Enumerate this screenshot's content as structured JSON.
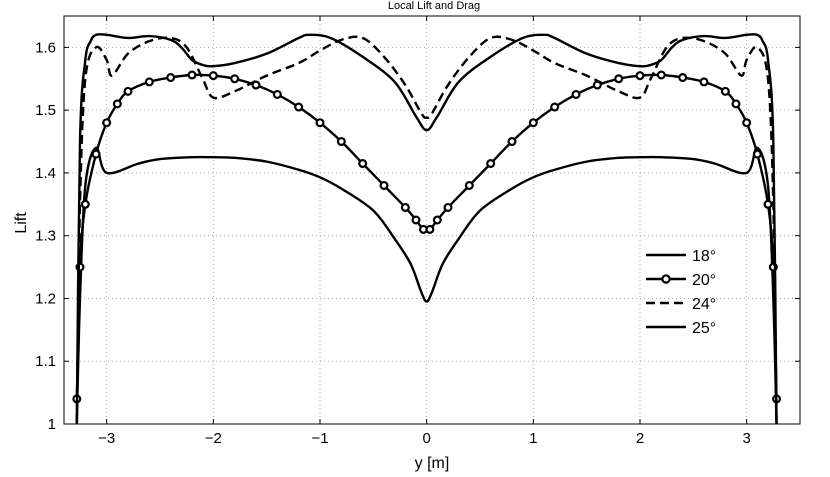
{
  "chart_data": {
    "type": "line",
    "title": "Local Lift and Drag",
    "xlabel": "y [m]",
    "ylabel": "Lift",
    "xlim": [
      -3.4,
      3.5
    ],
    "ylim": [
      1.0,
      1.65
    ],
    "xticks": [
      -3,
      -2,
      -1,
      0,
      1,
      2,
      3
    ],
    "xtick_labels": [
      "−3",
      "−2",
      "−1",
      "0",
      "1",
      "2",
      "3"
    ],
    "yticks": [
      1.0,
      1.1,
      1.2,
      1.3,
      1.4,
      1.5,
      1.6
    ],
    "ytick_labels": [
      "1",
      "1.1",
      "1.2",
      "1.3",
      "1.4",
      "1.5",
      "1.6"
    ],
    "grid": true,
    "legend_position": "right",
    "series": [
      {
        "name": "18°",
        "style": "solid",
        "x": [
          -3.28,
          -3.25,
          -3.2,
          -3.1,
          -3.0,
          -2.7,
          -2.5,
          -2.2,
          -2.0,
          -1.8,
          -1.5,
          -1.2,
          -1.0,
          -0.8,
          -0.5,
          -0.3,
          -0.15,
          -0.05,
          0.0,
          0.05,
          0.15,
          0.3,
          0.5,
          0.8,
          1.0,
          1.2,
          1.5,
          1.8,
          2.0,
          2.2,
          2.5,
          2.7,
          3.0,
          3.1,
          3.2,
          3.25,
          3.28
        ],
        "y": [
          1.0,
          1.2,
          1.38,
          1.44,
          1.4,
          1.415,
          1.422,
          1.425,
          1.425,
          1.424,
          1.418,
          1.405,
          1.393,
          1.375,
          1.34,
          1.295,
          1.255,
          1.21,
          1.195,
          1.21,
          1.255,
          1.295,
          1.34,
          1.375,
          1.393,
          1.405,
          1.418,
          1.424,
          1.425,
          1.425,
          1.422,
          1.415,
          1.4,
          1.44,
          1.38,
          1.2,
          1.0
        ]
      },
      {
        "name": "20°",
        "style": "solid-marker",
        "x": [
          -3.28,
          -3.25,
          -3.2,
          -3.1,
          -3.0,
          -2.9,
          -2.8,
          -2.6,
          -2.4,
          -2.2,
          -2.0,
          -1.8,
          -1.6,
          -1.4,
          -1.2,
          -1.0,
          -0.8,
          -0.6,
          -0.4,
          -0.2,
          -0.1,
          -0.03,
          0.03,
          0.1,
          0.2,
          0.4,
          0.6,
          0.8,
          1.0,
          1.2,
          1.4,
          1.6,
          1.8,
          2.0,
          2.2,
          2.4,
          2.6,
          2.8,
          2.9,
          3.0,
          3.1,
          3.2,
          3.25,
          3.28
        ],
        "y": [
          1.04,
          1.25,
          1.35,
          1.43,
          1.48,
          1.51,
          1.53,
          1.545,
          1.552,
          1.556,
          1.555,
          1.55,
          1.54,
          1.525,
          1.505,
          1.48,
          1.45,
          1.415,
          1.38,
          1.345,
          1.325,
          1.31,
          1.31,
          1.325,
          1.345,
          1.38,
          1.415,
          1.45,
          1.48,
          1.505,
          1.525,
          1.54,
          1.55,
          1.555,
          1.556,
          1.552,
          1.545,
          1.53,
          1.51,
          1.48,
          1.43,
          1.35,
          1.25,
          1.04
        ]
      },
      {
        "name": "24°",
        "style": "dashed",
        "x": [
          -3.28,
          -3.25,
          -3.2,
          -3.1,
          -3.0,
          -2.95,
          -2.8,
          -2.6,
          -2.4,
          -2.25,
          -2.1,
          -2.0,
          -1.8,
          -1.5,
          -1.2,
          -1.0,
          -0.8,
          -0.6,
          -0.4,
          -0.2,
          -0.05,
          0.0,
          0.05,
          0.2,
          0.4,
          0.6,
          0.8,
          1.0,
          1.2,
          1.5,
          1.8,
          2.0,
          2.1,
          2.25,
          2.4,
          2.6,
          2.8,
          2.95,
          3.0,
          3.1,
          3.2,
          3.25,
          3.28
        ],
        "y": [
          1.0,
          1.35,
          1.55,
          1.6,
          1.58,
          1.555,
          1.59,
          1.61,
          1.615,
          1.6,
          1.55,
          1.52,
          1.53,
          1.555,
          1.575,
          1.595,
          1.612,
          1.615,
          1.585,
          1.54,
          1.495,
          1.488,
          1.495,
          1.54,
          1.585,
          1.615,
          1.612,
          1.595,
          1.575,
          1.555,
          1.53,
          1.52,
          1.55,
          1.6,
          1.615,
          1.61,
          1.59,
          1.555,
          1.58,
          1.6,
          1.55,
          1.35,
          1.0
        ]
      },
      {
        "name": "25°",
        "style": "solid",
        "x": [
          -3.28,
          -3.25,
          -3.2,
          -3.15,
          -3.1,
          -3.0,
          -2.8,
          -2.6,
          -2.4,
          -2.3,
          -2.2,
          -2.1,
          -2.0,
          -1.8,
          -1.5,
          -1.2,
          -1.1,
          -0.9,
          -0.6,
          -0.3,
          -0.1,
          0.0,
          0.1,
          0.3,
          0.6,
          0.9,
          1.1,
          1.2,
          1.5,
          1.8,
          2.0,
          2.1,
          2.2,
          2.3,
          2.4,
          2.6,
          2.8,
          3.0,
          3.1,
          3.15,
          3.2,
          3.25,
          3.28
        ],
        "y": [
          1.0,
          1.45,
          1.58,
          1.61,
          1.62,
          1.62,
          1.615,
          1.618,
          1.612,
          1.6,
          1.58,
          1.572,
          1.57,
          1.575,
          1.59,
          1.615,
          1.62,
          1.615,
          1.585,
          1.545,
          1.49,
          1.468,
          1.49,
          1.545,
          1.585,
          1.615,
          1.62,
          1.615,
          1.59,
          1.575,
          1.57,
          1.572,
          1.58,
          1.6,
          1.612,
          1.618,
          1.615,
          1.62,
          1.62,
          1.61,
          1.58,
          1.45,
          1.0
        ]
      }
    ]
  }
}
